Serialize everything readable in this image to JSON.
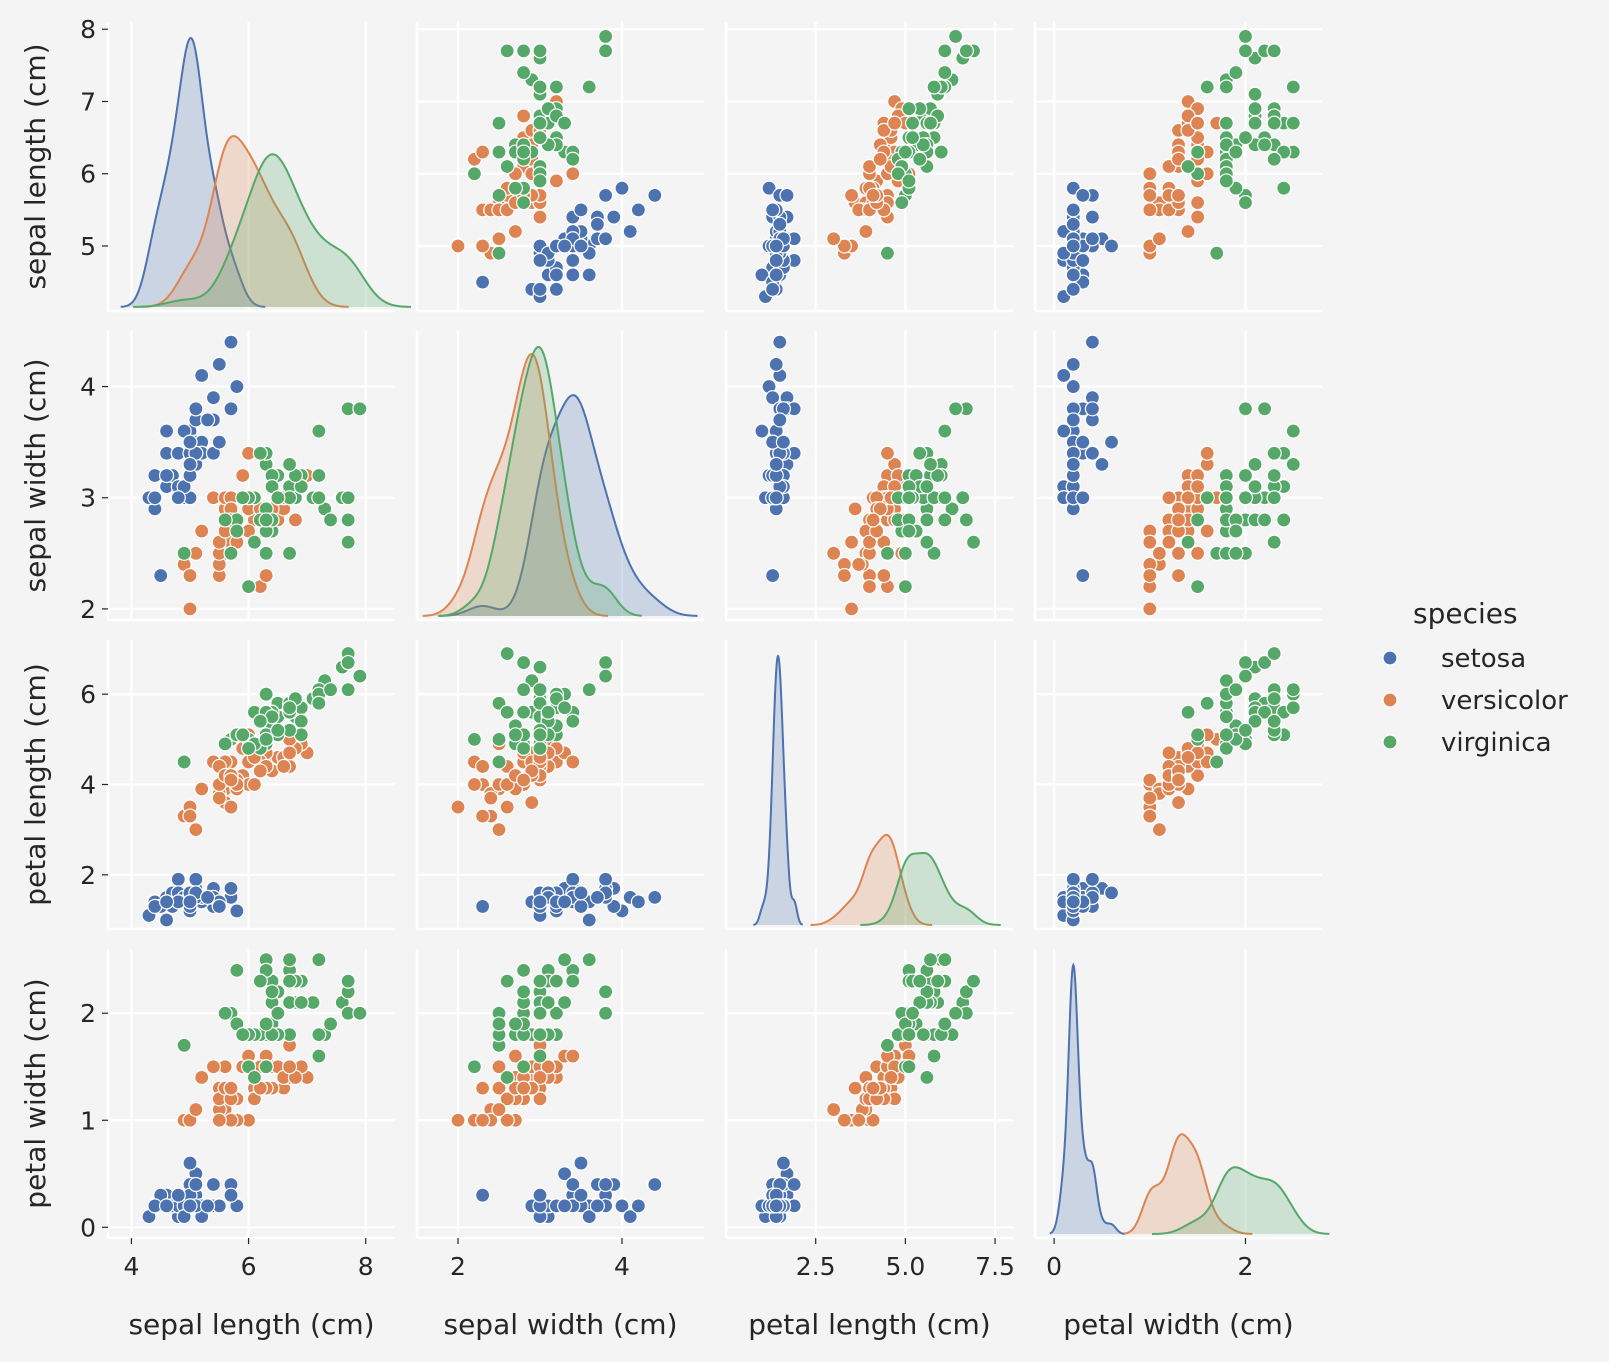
{
  "chart_data": {
    "type": "scatter",
    "subtype": "pairplot",
    "grid": true,
    "legend_placement": "right",
    "legend_title": "species",
    "variables": [
      "sepal length (cm)",
      "sepal width (cm)",
      "petal length (cm)",
      "petal width (cm)"
    ],
    "species": [
      {
        "name": "setosa",
        "color": "#4c72b0"
      },
      {
        "name": "versicolor",
        "color": "#dd8452"
      },
      {
        "name": "virginica",
        "color": "#55a868"
      }
    ],
    "axes": [
      {
        "label": "sepal length (cm)",
        "range": [
          3.6,
          8.5
        ],
        "ticks": [
          4,
          6,
          8
        ],
        "tick_labels": [
          "4",
          "6",
          "8"
        ],
        "row_ticks": [
          5,
          6,
          7,
          8
        ],
        "row_tick_labels": [
          "5",
          "6",
          "7",
          "8"
        ],
        "row_range": [
          4.1,
          8.1
        ]
      },
      {
        "label": "sepal width (cm)",
        "range": [
          1.5,
          5.0
        ],
        "ticks": [
          2,
          4
        ],
        "tick_labels": [
          "2",
          "4"
        ],
        "row_ticks": [
          2,
          3,
          4
        ],
        "row_tick_labels": [
          "2",
          "3",
          "4"
        ],
        "row_range": [
          1.9,
          4.5
        ]
      },
      {
        "label": "petal length (cm)",
        "range": [
          0.0,
          8.0
        ],
        "ticks": [
          2.5,
          5.0,
          7.5
        ],
        "tick_labels": [
          "2.5",
          "5.0",
          "7.5"
        ],
        "row_ticks": [
          2,
          4,
          6
        ],
        "row_tick_labels": [
          "2",
          "4",
          "6"
        ],
        "row_range": [
          0.8,
          7.2
        ]
      },
      {
        "label": "petal width (cm)",
        "range": [
          -0.2,
          2.8
        ],
        "ticks": [
          0,
          2
        ],
        "tick_labels": [
          "0",
          "2"
        ],
        "row_ticks": [
          0,
          1,
          2
        ],
        "row_tick_labels": [
          "0",
          "1",
          "2"
        ],
        "row_range": [
          -0.1,
          2.6
        ]
      }
    ],
    "columns": [
      "sepal length (cm)",
      "sepal width (cm)",
      "petal length (cm)",
      "petal width (cm)",
      "species"
    ],
    "samples": [
      [
        5.1,
        3.5,
        1.4,
        0.2,
        0
      ],
      [
        4.9,
        3.0,
        1.4,
        0.2,
        0
      ],
      [
        4.7,
        3.2,
        1.3,
        0.2,
        0
      ],
      [
        4.6,
        3.1,
        1.5,
        0.2,
        0
      ],
      [
        5.0,
        3.6,
        1.4,
        0.2,
        0
      ],
      [
        5.4,
        3.9,
        1.7,
        0.4,
        0
      ],
      [
        4.6,
        3.4,
        1.4,
        0.3,
        0
      ],
      [
        5.0,
        3.4,
        1.5,
        0.2,
        0
      ],
      [
        4.4,
        2.9,
        1.4,
        0.2,
        0
      ],
      [
        4.9,
        3.1,
        1.5,
        0.1,
        0
      ],
      [
        5.4,
        3.7,
        1.5,
        0.2,
        0
      ],
      [
        4.8,
        3.4,
        1.6,
        0.2,
        0
      ],
      [
        4.8,
        3.0,
        1.4,
        0.1,
        0
      ],
      [
        4.3,
        3.0,
        1.1,
        0.1,
        0
      ],
      [
        5.8,
        4.0,
        1.2,
        0.2,
        0
      ],
      [
        5.7,
        4.4,
        1.5,
        0.4,
        0
      ],
      [
        5.4,
        3.9,
        1.3,
        0.4,
        0
      ],
      [
        5.1,
        3.5,
        1.4,
        0.3,
        0
      ],
      [
        5.7,
        3.8,
        1.7,
        0.3,
        0
      ],
      [
        5.1,
        3.8,
        1.5,
        0.3,
        0
      ],
      [
        5.4,
        3.4,
        1.7,
        0.2,
        0
      ],
      [
        5.1,
        3.7,
        1.5,
        0.4,
        0
      ],
      [
        4.6,
        3.6,
        1.0,
        0.2,
        0
      ],
      [
        5.1,
        3.3,
        1.7,
        0.5,
        0
      ],
      [
        4.8,
        3.4,
        1.9,
        0.2,
        0
      ],
      [
        5.0,
        3.0,
        1.6,
        0.2,
        0
      ],
      [
        5.0,
        3.4,
        1.6,
        0.4,
        0
      ],
      [
        5.2,
        3.5,
        1.5,
        0.2,
        0
      ],
      [
        5.2,
        3.4,
        1.4,
        0.2,
        0
      ],
      [
        4.7,
        3.2,
        1.6,
        0.2,
        0
      ],
      [
        4.8,
        3.1,
        1.6,
        0.2,
        0
      ],
      [
        5.4,
        3.4,
        1.5,
        0.4,
        0
      ],
      [
        5.2,
        4.1,
        1.5,
        0.1,
        0
      ],
      [
        5.5,
        4.2,
        1.4,
        0.2,
        0
      ],
      [
        4.9,
        3.1,
        1.5,
        0.2,
        0
      ],
      [
        5.0,
        3.2,
        1.2,
        0.2,
        0
      ],
      [
        5.5,
        3.5,
        1.3,
        0.2,
        0
      ],
      [
        4.9,
        3.6,
        1.4,
        0.1,
        0
      ],
      [
        4.4,
        3.0,
        1.3,
        0.2,
        0
      ],
      [
        5.1,
        3.4,
        1.5,
        0.2,
        0
      ],
      [
        5.0,
        3.5,
        1.3,
        0.3,
        0
      ],
      [
        4.5,
        2.3,
        1.3,
        0.3,
        0
      ],
      [
        4.4,
        3.2,
        1.3,
        0.2,
        0
      ],
      [
        5.0,
        3.5,
        1.6,
        0.6,
        0
      ],
      [
        5.1,
        3.8,
        1.9,
        0.4,
        0
      ],
      [
        4.8,
        3.0,
        1.4,
        0.3,
        0
      ],
      [
        5.1,
        3.8,
        1.6,
        0.2,
        0
      ],
      [
        4.6,
        3.2,
        1.4,
        0.2,
        0
      ],
      [
        5.3,
        3.7,
        1.5,
        0.2,
        0
      ],
      [
        5.0,
        3.3,
        1.4,
        0.2,
        0
      ],
      [
        7.0,
        3.2,
        4.7,
        1.4,
        1
      ],
      [
        6.4,
        3.2,
        4.5,
        1.5,
        1
      ],
      [
        6.9,
        3.1,
        4.9,
        1.5,
        1
      ],
      [
        5.5,
        2.3,
        4.0,
        1.3,
        1
      ],
      [
        6.5,
        2.8,
        4.6,
        1.5,
        1
      ],
      [
        5.7,
        2.8,
        4.5,
        1.3,
        1
      ],
      [
        6.3,
        3.3,
        4.7,
        1.6,
        1
      ],
      [
        4.9,
        2.4,
        3.3,
        1.0,
        1
      ],
      [
        6.6,
        2.9,
        4.6,
        1.3,
        1
      ],
      [
        5.2,
        2.7,
        3.9,
        1.4,
        1
      ],
      [
        5.0,
        2.0,
        3.5,
        1.0,
        1
      ],
      [
        5.9,
        3.0,
        4.2,
        1.5,
        1
      ],
      [
        6.0,
        2.2,
        4.0,
        1.0,
        1
      ],
      [
        6.1,
        2.9,
        4.7,
        1.4,
        1
      ],
      [
        5.6,
        2.9,
        3.6,
        1.3,
        1
      ],
      [
        6.7,
        3.1,
        4.4,
        1.4,
        1
      ],
      [
        5.6,
        3.0,
        4.5,
        1.5,
        1
      ],
      [
        5.8,
        2.7,
        4.1,
        1.0,
        1
      ],
      [
        6.2,
        2.2,
        4.5,
        1.5,
        1
      ],
      [
        5.6,
        2.5,
        3.9,
        1.1,
        1
      ],
      [
        5.9,
        3.2,
        4.8,
        1.8,
        1
      ],
      [
        6.1,
        2.8,
        4.0,
        1.3,
        1
      ],
      [
        6.3,
        2.5,
        4.9,
        1.5,
        1
      ],
      [
        6.1,
        2.8,
        4.7,
        1.2,
        1
      ],
      [
        6.4,
        2.9,
        4.3,
        1.3,
        1
      ],
      [
        6.6,
        3.0,
        4.4,
        1.4,
        1
      ],
      [
        6.8,
        2.8,
        4.8,
        1.4,
        1
      ],
      [
        6.7,
        3.0,
        5.0,
        1.7,
        1
      ],
      [
        6.0,
        2.9,
        4.5,
        1.5,
        1
      ],
      [
        5.7,
        2.6,
        3.5,
        1.0,
        1
      ],
      [
        5.5,
        2.4,
        3.8,
        1.1,
        1
      ],
      [
        5.5,
        2.4,
        3.7,
        1.0,
        1
      ],
      [
        5.8,
        2.7,
        3.9,
        1.2,
        1
      ],
      [
        6.0,
        2.7,
        5.1,
        1.6,
        1
      ],
      [
        5.4,
        3.0,
        4.5,
        1.5,
        1
      ],
      [
        6.0,
        3.4,
        4.5,
        1.6,
        1
      ],
      [
        6.7,
        3.1,
        4.7,
        1.5,
        1
      ],
      [
        6.3,
        2.3,
        4.4,
        1.3,
        1
      ],
      [
        5.6,
        3.0,
        4.1,
        1.3,
        1
      ],
      [
        5.5,
        2.5,
        4.0,
        1.3,
        1
      ],
      [
        5.5,
        2.6,
        4.4,
        1.2,
        1
      ],
      [
        6.1,
        3.0,
        4.6,
        1.4,
        1
      ],
      [
        5.8,
        2.6,
        4.0,
        1.2,
        1
      ],
      [
        5.0,
        2.3,
        3.3,
        1.0,
        1
      ],
      [
        5.6,
        2.7,
        4.2,
        1.3,
        1
      ],
      [
        5.7,
        3.0,
        4.2,
        1.2,
        1
      ],
      [
        5.7,
        2.9,
        4.2,
        1.3,
        1
      ],
      [
        6.2,
        2.9,
        4.3,
        1.3,
        1
      ],
      [
        5.1,
        2.5,
        3.0,
        1.1,
        1
      ],
      [
        5.7,
        2.8,
        4.1,
        1.3,
        1
      ],
      [
        6.3,
        3.3,
        6.0,
        2.5,
        2
      ],
      [
        5.8,
        2.7,
        5.1,
        1.9,
        2
      ],
      [
        7.1,
        3.0,
        5.9,
        2.1,
        2
      ],
      [
        6.3,
        2.9,
        5.6,
        1.8,
        2
      ],
      [
        6.5,
        3.0,
        5.8,
        2.2,
        2
      ],
      [
        7.6,
        3.0,
        6.6,
        2.1,
        2
      ],
      [
        4.9,
        2.5,
        4.5,
        1.7,
        2
      ],
      [
        7.3,
        2.9,
        6.3,
        1.8,
        2
      ],
      [
        6.7,
        2.5,
        5.8,
        1.8,
        2
      ],
      [
        7.2,
        3.6,
        6.1,
        2.5,
        2
      ],
      [
        6.5,
        3.2,
        5.1,
        2.0,
        2
      ],
      [
        6.4,
        2.7,
        5.3,
        1.9,
        2
      ],
      [
        6.8,
        3.0,
        5.5,
        2.1,
        2
      ],
      [
        5.7,
        2.5,
        5.0,
        2.0,
        2
      ],
      [
        5.8,
        2.8,
        5.1,
        2.4,
        2
      ],
      [
        6.4,
        3.2,
        5.3,
        2.3,
        2
      ],
      [
        6.5,
        3.0,
        5.5,
        1.8,
        2
      ],
      [
        7.7,
        3.8,
        6.7,
        2.2,
        2
      ],
      [
        7.7,
        2.6,
        6.9,
        2.3,
        2
      ],
      [
        6.0,
        2.2,
        5.0,
        1.5,
        2
      ],
      [
        6.9,
        3.2,
        5.7,
        2.3,
        2
      ],
      [
        5.6,
        2.8,
        4.9,
        2.0,
        2
      ],
      [
        7.7,
        2.8,
        6.7,
        2.0,
        2
      ],
      [
        6.3,
        2.7,
        4.9,
        1.8,
        2
      ],
      [
        6.7,
        3.3,
        5.7,
        2.1,
        2
      ],
      [
        7.2,
        3.2,
        6.0,
        1.8,
        2
      ],
      [
        6.2,
        2.8,
        4.8,
        1.8,
        2
      ],
      [
        6.1,
        3.0,
        4.9,
        1.8,
        2
      ],
      [
        6.4,
        2.8,
        5.6,
        2.1,
        2
      ],
      [
        7.2,
        3.0,
        5.8,
        1.6,
        2
      ],
      [
        7.4,
        2.8,
        6.1,
        1.9,
        2
      ],
      [
        7.9,
        3.8,
        6.4,
        2.0,
        2
      ],
      [
        6.4,
        2.8,
        5.6,
        2.2,
        2
      ],
      [
        6.3,
        2.8,
        5.1,
        1.5,
        2
      ],
      [
        6.1,
        2.6,
        5.6,
        1.4,
        2
      ],
      [
        7.7,
        3.0,
        6.1,
        2.3,
        2
      ],
      [
        6.3,
        3.4,
        5.6,
        2.4,
        2
      ],
      [
        6.4,
        3.1,
        5.5,
        1.8,
        2
      ],
      [
        6.0,
        3.0,
        4.8,
        1.8,
        2
      ],
      [
        6.9,
        3.1,
        5.4,
        2.1,
        2
      ],
      [
        6.7,
        3.1,
        5.6,
        2.4,
        2
      ],
      [
        6.9,
        3.1,
        5.1,
        2.3,
        2
      ],
      [
        5.8,
        2.7,
        5.1,
        1.9,
        2
      ],
      [
        6.8,
        3.2,
        5.9,
        2.3,
        2
      ],
      [
        6.7,
        3.3,
        5.7,
        2.5,
        2
      ],
      [
        6.7,
        3.0,
        5.2,
        2.3,
        2
      ],
      [
        6.3,
        2.5,
        5.0,
        1.9,
        2
      ],
      [
        6.5,
        3.0,
        5.2,
        2.0,
        2
      ],
      [
        6.2,
        3.4,
        5.4,
        2.3,
        2
      ],
      [
        5.9,
        3.0,
        5.1,
        1.8,
        2
      ]
    ]
  }
}
